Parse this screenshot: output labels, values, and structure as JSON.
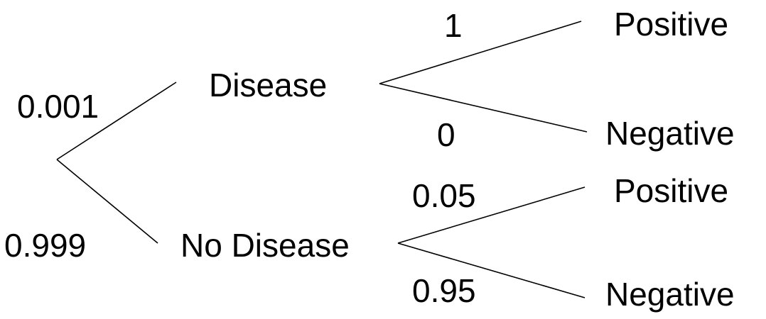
{
  "tree": {
    "root_branches": [
      {
        "probability": "0.001",
        "outcome": "Disease",
        "sub_branches": [
          {
            "probability": "1",
            "outcome": "Positive"
          },
          {
            "probability": "0",
            "outcome": "Negative"
          }
        ]
      },
      {
        "probability": "0.999",
        "outcome": "No Disease",
        "sub_branches": [
          {
            "probability": "0.05",
            "outcome": "Positive"
          },
          {
            "probability": "0.95",
            "outcome": "Negative"
          }
        ]
      }
    ]
  }
}
